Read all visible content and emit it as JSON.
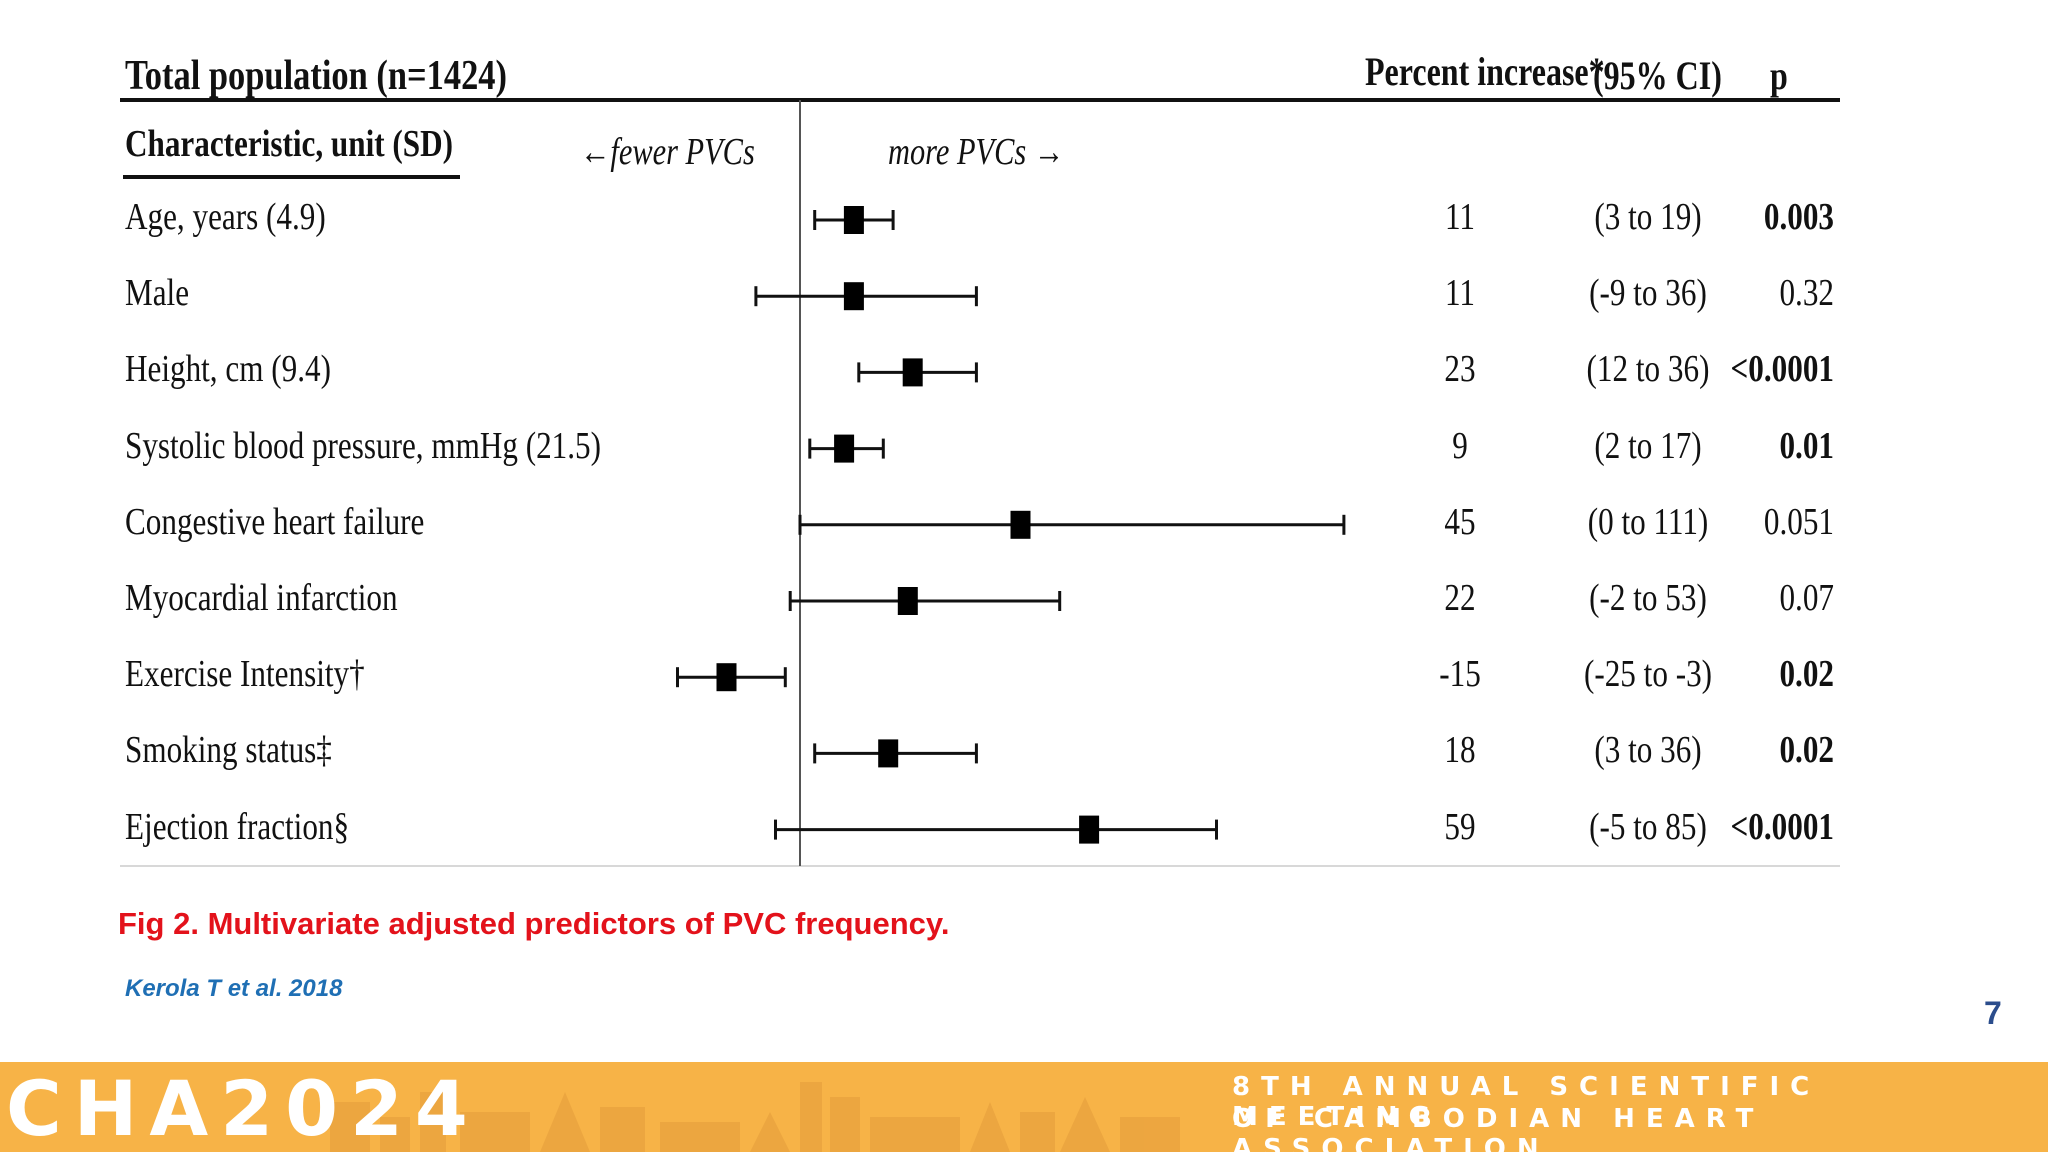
{
  "table": {
    "title": "Total population (n=1424)",
    "col_percent": "Percent increase*",
    "col_ci": "(95% CI)",
    "col_p": "p",
    "characteristic_header": "Characteristic, unit (SD)",
    "dir_fewer": "←fewer PVCs",
    "dir_more": "more PVCs →"
  },
  "chart_data": {
    "type": "forest",
    "x_axis": "Percent increase",
    "reference_line": 0,
    "xlim": [
      -50,
      170
    ],
    "rows": [
      {
        "label": "Age, years (4.9)",
        "estimate": 11,
        "low": 3,
        "high": 19,
        "est_text": "11",
        "ci_text": "(3 to 19)",
        "p_text": "0.003",
        "p_bold": true
      },
      {
        "label": "Male",
        "estimate": 11,
        "low": -9,
        "high": 36,
        "est_text": "11",
        "ci_text": "(-9 to 36)",
        "p_text": "0.32",
        "p_bold": false
      },
      {
        "label": "Height, cm (9.4)",
        "estimate": 23,
        "low": 12,
        "high": 36,
        "est_text": "23",
        "ci_text": "(12 to 36)",
        "p_text": "<0.0001",
        "p_bold": true
      },
      {
        "label": "Systolic blood pressure, mmHg (21.5)",
        "estimate": 9,
        "low": 2,
        "high": 17,
        "est_text": "9",
        "ci_text": "(2 to 17)",
        "p_text": "0.01",
        "p_bold": true
      },
      {
        "label": "Congestive heart failure",
        "estimate": 45,
        "low": 0,
        "high": 111,
        "est_text": "45",
        "ci_text": "(0 to 111)",
        "p_text": "0.051",
        "p_bold": false
      },
      {
        "label": "Myocardial infarction",
        "estimate": 22,
        "low": -2,
        "high": 53,
        "est_text": "22",
        "ci_text": "(-2 to 53)",
        "p_text": "0.07",
        "p_bold": false
      },
      {
        "label": "Exercise Intensity†",
        "estimate": -15,
        "low": -25,
        "high": -3,
        "est_text": "-15",
        "ci_text": "(-25 to -3)",
        "p_text": "0.02",
        "p_bold": true
      },
      {
        "label": "Smoking status‡",
        "estimate": 18,
        "low": 3,
        "high": 36,
        "est_text": "18",
        "ci_text": "(3 to 36)",
        "p_text": "0.02",
        "p_bold": true
      },
      {
        "label": "Ejection fraction§",
        "estimate": 59,
        "low": -5,
        "high": 85,
        "est_text": "59",
        "ci_text": "(-5 to 85)",
        "p_text": "<0.0001",
        "p_bold": true
      }
    ]
  },
  "caption": "Fig 2. Multivariate adjusted predictors of PVC frequency.",
  "citation": "Kerola T et al. 2018",
  "page_number": "7",
  "banner": {
    "title": "CHA2024",
    "line1": "8TH ANNUAL SCIENTIFIC MEETING",
    "line2": "OF CAMBODIAN HEART ASSOCIATION",
    "color": "#f7b347"
  }
}
